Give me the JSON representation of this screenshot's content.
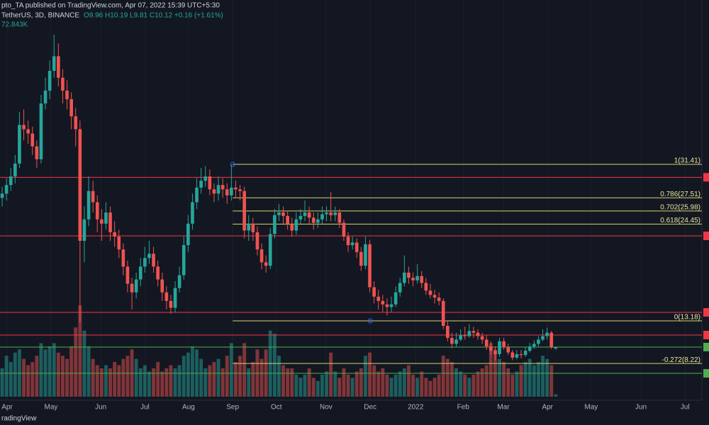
{
  "header": {
    "publisher_line": "pto_TA published on TradingView.com, Apr 07, 2022 15:39 UTC+5:30",
    "symbol_line": "TetherUS, 3D, BINANCE",
    "ohlc_line": "O9.96 H10.19 L9.81 C10.12 +0.16 (+1.61%)",
    "volume_label": "72.843K"
  },
  "footer": {
    "brand": "radingView"
  },
  "chart_data": {
    "type": "candlestick",
    "up_color": "#26a69a",
    "down_color": "#ef5350",
    "xlim": [
      -0.5,
      161.8
    ],
    "ylim": [
      3.94,
      50.55
    ],
    "vlim": [
      0,
      3600
    ],
    "xticks": [
      {
        "value": 1.15,
        "label": "Apr"
      },
      {
        "value": 11.3,
        "label": "May"
      },
      {
        "value": 22.8,
        "label": "Jun"
      },
      {
        "value": 33,
        "label": "Jul"
      },
      {
        "value": 43.1,
        "label": "Aug"
      },
      {
        "value": 53.3,
        "label": "Sep"
      },
      {
        "value": 63.4,
        "label": "Oct"
      },
      {
        "value": 74.9,
        "label": "Nov"
      },
      {
        "value": 85.1,
        "label": "Dec"
      },
      {
        "value": 95.6,
        "label": "2022"
      },
      {
        "value": 106.6,
        "label": "Feb"
      },
      {
        "value": 115.9,
        "label": "Mar"
      },
      {
        "value": 126.1,
        "label": "Apr"
      },
      {
        "value": 136.2,
        "label": "May"
      },
      {
        "value": 147.7,
        "label": "Jun"
      },
      {
        "value": 157.9,
        "label": "Jul"
      }
    ],
    "levels": [
      {
        "price": 29.9,
        "color": "#f23645"
      },
      {
        "price": 23.08,
        "color": "#f23645"
      },
      {
        "price": 14.17,
        "color": "#f23645"
      },
      {
        "price": 11.53,
        "color": "#f23645"
      },
      {
        "price": 10.13,
        "color": "#4caf50"
      },
      {
        "price": 7.07,
        "color": "#4caf50"
      }
    ],
    "fib": {
      "start": 53.3,
      "color": "#d4d46a",
      "levels": [
        {
          "label": "1(31.41)",
          "value": 31.41
        },
        {
          "label": "0.786(27.51)",
          "value": 27.51
        },
        {
          "label": "0.702(25.98)",
          "value": 25.98
        },
        {
          "label": "0.618(24.45)",
          "value": 24.45
        },
        {
          "label": "0(13.18)",
          "value": 13.18
        },
        {
          "label": "-0.272(8.22)",
          "value": 8.22
        }
      ]
    },
    "candles": [
      [
        27.5,
        28.8,
        26.5,
        28
      ],
      [
        28,
        29.8,
        27.2,
        29
      ],
      [
        29,
        31,
        28.3,
        30
      ],
      [
        30,
        32.5,
        29.2,
        31.5
      ],
      [
        31.5,
        37.5,
        31,
        36
      ],
      [
        36,
        37.8,
        34.2,
        35.5
      ],
      [
        35.5,
        36.5,
        33.8,
        35
      ],
      [
        35,
        35.8,
        32.5,
        33.5
      ],
      [
        33.5,
        34.2,
        31,
        32
      ],
      [
        32,
        39.5,
        31.5,
        38.5
      ],
      [
        38.5,
        41.5,
        37.8,
        40
      ],
      [
        40,
        43.5,
        39,
        42.3
      ],
      [
        42.3,
        46.5,
        41.5,
        44
      ],
      [
        44,
        45.5,
        40.5,
        41.5
      ],
      [
        41.5,
        42.5,
        38.5,
        40
      ],
      [
        40,
        41.2,
        37.8,
        39
      ],
      [
        39,
        39.8,
        35.5,
        37
      ],
      [
        37,
        38,
        33.5,
        35.5
      ],
      [
        35.5,
        36.5,
        13,
        22.5
      ],
      [
        22.5,
        26.5,
        20,
        25
      ],
      [
        25,
        30,
        24.2,
        28.3
      ],
      [
        28.3,
        29.5,
        25.8,
        27
      ],
      [
        27,
        27.8,
        23.5,
        25
      ],
      [
        25,
        26.2,
        22.5,
        24.5
      ],
      [
        24.5,
        27,
        23.8,
        25.8
      ],
      [
        25.8,
        26.5,
        22.5,
        23.5
      ],
      [
        23.5,
        24.8,
        21.8,
        23
      ],
      [
        23,
        23.8,
        20.5,
        21.5
      ],
      [
        21.5,
        22.2,
        18.5,
        19.5
      ],
      [
        19.5,
        20.2,
        16.5,
        17.5
      ],
      [
        17.5,
        18.2,
        14.5,
        16.5
      ],
      [
        16.5,
        18.8,
        15.8,
        18
      ],
      [
        18,
        20.5,
        17.2,
        19.5
      ],
      [
        19.5,
        21.8,
        18.8,
        20.5
      ],
      [
        20.5,
        22.5,
        19.8,
        21
      ],
      [
        21,
        21.8,
        18.8,
        19.5
      ],
      [
        19.5,
        20.2,
        17.2,
        18
      ],
      [
        18,
        18.8,
        15.5,
        16.5
      ],
      [
        16.5,
        17.2,
        14.5,
        15.5
      ],
      [
        15.5,
        16.2,
        14,
        14.7
      ],
      [
        14.7,
        17.8,
        14.2,
        17
      ],
      [
        17,
        19.5,
        16.5,
        18.5
      ],
      [
        18.5,
        23,
        18,
        22
      ],
      [
        22,
        25.5,
        21.2,
        24.5
      ],
      [
        24.5,
        28,
        23.8,
        27
      ],
      [
        27,
        29.8,
        26.2,
        28.7
      ],
      [
        28.7,
        31,
        28,
        29.5
      ],
      [
        29.5,
        31.2,
        28.8,
        30
      ],
      [
        30,
        30.8,
        27.8,
        28.5
      ],
      [
        28.5,
        29.2,
        27,
        28
      ],
      [
        28,
        30,
        27.2,
        29
      ],
      [
        29,
        29.8,
        27.5,
        28.5
      ],
      [
        28.5,
        29.2,
        26.8,
        27.8
      ],
      [
        27.8,
        31.4,
        27.2,
        28.7
      ],
      [
        28.7,
        29.5,
        27.5,
        28.5
      ],
      [
        28.5,
        29,
        27.2,
        28.3
      ],
      [
        28.3,
        28.8,
        22.8,
        23.7
      ],
      [
        23.7,
        25.5,
        22.5,
        24.5
      ],
      [
        24.5,
        25.2,
        22.5,
        23.5
      ],
      [
        23.5,
        24.2,
        20.8,
        21.5
      ],
      [
        21.5,
        22.2,
        19.2,
        20
      ],
      [
        20,
        20.8,
        18.8,
        19.6
      ],
      [
        19.6,
        24,
        19.2,
        23.3
      ],
      [
        23.3,
        26.2,
        22.8,
        25.5
      ],
      [
        25.5,
        26.8,
        24.8,
        25.8
      ],
      [
        25.8,
        26.5,
        24.5,
        25.4
      ],
      [
        25.4,
        26,
        23.8,
        24.5
      ],
      [
        24.5,
        25.2,
        23,
        23.7
      ],
      [
        23.7,
        25.8,
        23.2,
        25
      ],
      [
        25,
        26.2,
        24.5,
        25.4
      ],
      [
        25.4,
        27.2,
        24.8,
        25.8
      ],
      [
        25.8,
        26.5,
        24.5,
        25.2
      ],
      [
        25.2,
        25.8,
        23.8,
        24.6
      ],
      [
        24.6,
        25.8,
        24,
        25
      ],
      [
        25,
        26.5,
        24.5,
        25.6
      ],
      [
        25.6,
        26.5,
        24.8,
        25.8
      ],
      [
        25.8,
        28.2,
        24.8,
        25.5
      ],
      [
        25.5,
        26.5,
        24.8,
        25.8
      ],
      [
        25.8,
        26.2,
        24,
        24.6
      ],
      [
        24.6,
        25,
        22.5,
        23
      ],
      [
        23,
        23.5,
        21.2,
        22
      ],
      [
        22,
        23,
        21.5,
        22.3
      ],
      [
        22.3,
        22.8,
        20.5,
        21.2
      ],
      [
        21.2,
        21.8,
        19,
        19.6
      ],
      [
        19.6,
        23,
        19.2,
        22.1
      ],
      [
        22.1,
        22.6,
        16.5,
        17.1
      ],
      [
        17.1,
        17.8,
        15.2,
        16
      ],
      [
        16,
        16.8,
        14.5,
        15.5
      ],
      [
        15.5,
        16.2,
        14.2,
        15.1
      ],
      [
        15.1,
        15.8,
        13.8,
        14.8
      ],
      [
        14.8,
        16,
        14.2,
        15.1
      ],
      [
        15.1,
        17.2,
        14.8,
        16.5
      ],
      [
        16.5,
        18.2,
        16,
        17.6
      ],
      [
        17.6,
        20.8,
        17.2,
        18.8
      ],
      [
        18.8,
        19.5,
        17.5,
        18.2
      ],
      [
        18.2,
        18.8,
        17.2,
        17.9
      ],
      [
        17.9,
        19.8,
        17.5,
        18.4
      ],
      [
        18.4,
        19,
        17,
        17.6
      ],
      [
        17.6,
        18.2,
        16.2,
        16.7
      ],
      [
        16.7,
        17.5,
        15.8,
        16.2
      ],
      [
        16.2,
        16.8,
        15.2,
        15.9
      ],
      [
        15.9,
        16.5,
        15,
        15.5
      ],
      [
        15.5,
        15.8,
        12.2,
        12.6
      ],
      [
        12.6,
        13.2,
        10.8,
        11.2
      ],
      [
        11.2,
        11.8,
        10,
        10.5
      ],
      [
        10.5,
        11.8,
        10.2,
        11
      ],
      [
        11,
        12.2,
        10.8,
        11.5
      ],
      [
        11.5,
        12.5,
        11,
        11.4
      ],
      [
        11.4,
        12.8,
        11.2,
        12
      ],
      [
        12,
        12.5,
        11.2,
        11.8
      ],
      [
        11.8,
        12.2,
        11,
        11.4
      ],
      [
        11.4,
        11.8,
        10.5,
        11
      ],
      [
        11,
        11.5,
        9.8,
        10.2
      ],
      [
        10.2,
        10.8,
        9.2,
        9.7
      ],
      [
        9.7,
        10.2,
        8.6,
        9.3
      ],
      [
        9.3,
        11.2,
        9,
        10.8
      ],
      [
        10.8,
        11.2,
        9.8,
        10.1
      ],
      [
        10.1,
        10.5,
        9.2,
        9.5
      ],
      [
        9.5,
        9.8,
        8.6,
        8.9
      ],
      [
        8.9,
        9.8,
        8.7,
        9.3
      ],
      [
        9.3,
        9.8,
        8.8,
        9.2
      ],
      [
        9.2,
        10.1,
        9,
        9.7
      ],
      [
        9.7,
        10.6,
        9.5,
        10.2
      ],
      [
        10.2,
        10.9,
        9.9,
        10.5
      ],
      [
        10.5,
        11.4,
        10.2,
        11
      ],
      [
        11,
        12.2,
        10.8,
        11.4
      ],
      [
        11.4,
        12.4,
        11,
        11.8
      ],
      [
        11.8,
        12,
        9.9,
        10.1
      ],
      [
        9.96,
        10.19,
        9.81,
        10.12
      ]
    ],
    "volume": [
      900,
      1300,
      1100,
      1400,
      1500,
      1200,
      1000,
      1100,
      1300,
      1700,
      1500,
      1600,
      1700,
      1400,
      1300,
      1200,
      1600,
      2200,
      2900,
      2100,
      1600,
      1200,
      1000,
      900,
      1000,
      900,
      1100,
      1000,
      1200,
      1300,
      1500,
      1200,
      900,
      1000,
      800,
      900,
      1100,
      800,
      900,
      1000,
      900,
      1000,
      1300,
      1400,
      1600,
      1500,
      1200,
      900,
      1000,
      1100,
      1200,
      900,
      1300,
      1700,
      1100,
      1300,
      1700,
      900,
      1100,
      1500,
      1200,
      1500,
      2100,
      2000,
      1300,
      1000,
      900,
      900,
      700,
      600,
      700,
      900,
      600,
      500,
      700,
      800,
      1400,
      800,
      600,
      900,
      700,
      600,
      800,
      900,
      1300,
      1400,
      1000,
      800,
      900,
      700,
      600,
      700,
      800,
      900,
      1000,
      700,
      600,
      800,
      600,
      500,
      600,
      700,
      1300,
      1200,
      1100,
      900,
      800,
      700,
      600,
      700,
      800,
      900,
      1000,
      1700,
      1500,
      1200,
      1100,
      900,
      700,
      800,
      1000,
      1100,
      1200,
      1000,
      1100,
      1300,
      1200,
      1000,
      72.843
    ]
  }
}
